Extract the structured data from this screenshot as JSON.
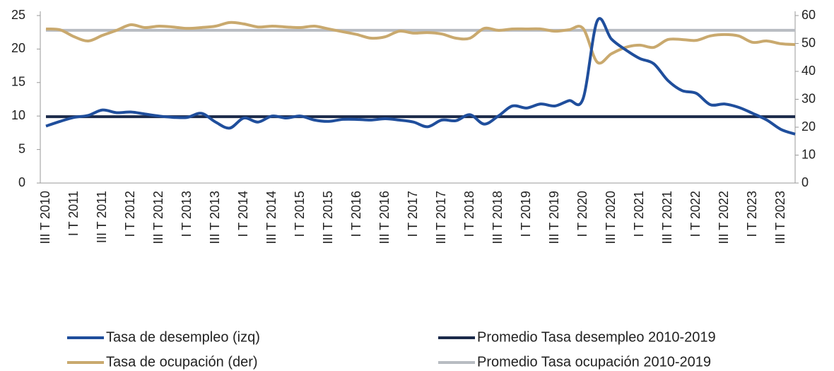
{
  "chart_data": {
    "type": "line",
    "categories": [
      "III T 2010",
      null,
      "I T 2011",
      null,
      "III T 2011",
      null,
      "I T 2012",
      null,
      "III T 2012",
      null,
      "I T 2013",
      null,
      "III T 2013",
      null,
      "I T 2014",
      null,
      "III T 2014",
      null,
      "I T 2015",
      null,
      "III T 2015",
      null,
      "I T 2016",
      null,
      "III T 2016",
      null,
      "I T 2017",
      null,
      "III T 2017",
      null,
      "I T 2018",
      null,
      "III T 2018",
      null,
      "I T 2019",
      null,
      "III T 2019",
      null,
      "I T 2020",
      null,
      "III T 2020",
      null,
      "I T 2021",
      null,
      "III T 2021",
      null,
      "I T 2022",
      null,
      "III T 2022",
      null,
      "I T 2023",
      null,
      "III T 2023",
      null
    ],
    "series": [
      {
        "name": "Tasa de desempleo (izq)",
        "color": "#1f4e9c",
        "axis": "y",
        "values": [
          8.5,
          9.2,
          9.8,
          10.1,
          10.9,
          10.5,
          10.6,
          10.3,
          10.0,
          9.8,
          9.8,
          10.4,
          9.1,
          8.2,
          9.7,
          9.1,
          10.0,
          9.7,
          10.0,
          9.4,
          9.2,
          9.5,
          9.5,
          9.4,
          9.6,
          9.4,
          9.1,
          8.4,
          9.4,
          9.3,
          10.2,
          8.8,
          10.0,
          11.5,
          11.2,
          11.8,
          11.5,
          12.3,
          12.6,
          24.2,
          21.5,
          19.9,
          18.6,
          17.8,
          15.3,
          13.8,
          13.4,
          11.7,
          11.8,
          11.3,
          10.4,
          9.4,
          8.0,
          7.3
        ]
      },
      {
        "name": "Tasa de ocupación (der)",
        "color": "#c9a96e",
        "axis": "y2",
        "values": [
          55.2,
          54.9,
          52.4,
          50.9,
          52.9,
          54.7,
          56.7,
          55.7,
          56.2,
          55.9,
          55.4,
          55.7,
          56.2,
          57.5,
          57.0,
          55.9,
          56.2,
          55.9,
          55.7,
          56.2,
          55.2,
          54.2,
          53.2,
          51.9,
          52.4,
          54.4,
          53.7,
          53.9,
          53.4,
          51.9,
          51.9,
          55.4,
          54.7,
          55.2,
          55.2,
          55.2,
          54.4,
          54.9,
          55.4,
          43.3,
          46.3,
          48.6,
          49.4,
          48.6,
          51.4,
          51.4,
          51.1,
          52.7,
          53.2,
          52.7,
          50.4,
          50.9,
          49.9,
          49.6
        ]
      },
      {
        "name": "Promedio Tasa desempleo 2010-2019",
        "color": "#1b2a4a",
        "axis": "y",
        "value": 9.9
      },
      {
        "name": "Promedio Tasa ocupación 2010-2019",
        "color": "#b8bcc2",
        "axis": "y2",
        "value": 54.7
      }
    ],
    "ylim": [
      0,
      25
    ],
    "yticks": [
      0,
      5,
      10,
      15,
      20,
      25
    ],
    "y2lim": [
      0,
      60
    ],
    "y2ticks": [
      0,
      10,
      20,
      30,
      40,
      50,
      60
    ]
  }
}
